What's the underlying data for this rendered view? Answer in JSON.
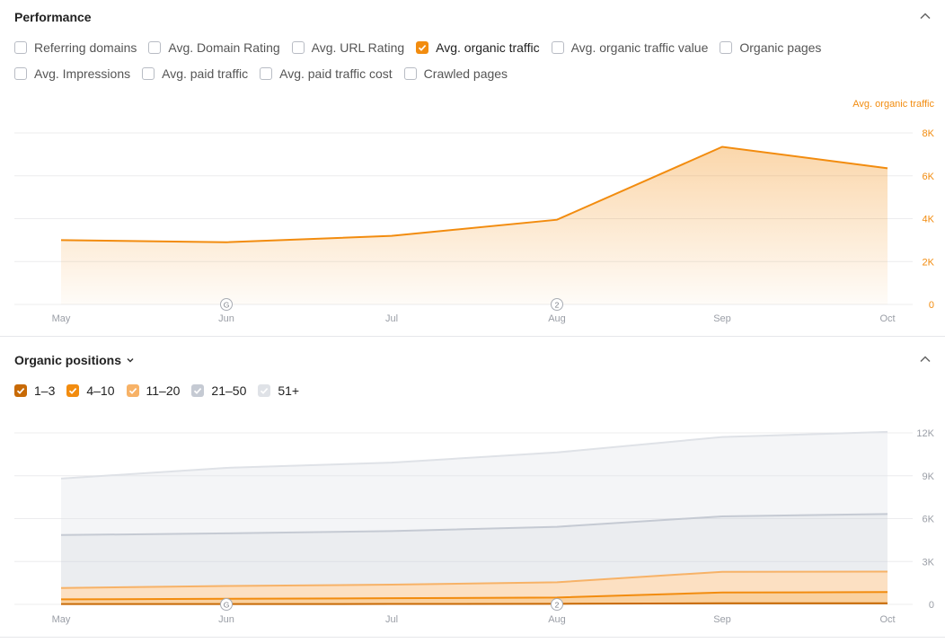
{
  "performance": {
    "title": "Performance",
    "checkboxes": [
      {
        "label": "Referring domains",
        "checked": false
      },
      {
        "label": "Avg. Domain Rating",
        "checked": false
      },
      {
        "label": "Avg. URL Rating",
        "checked": false
      },
      {
        "label": "Avg. organic traffic",
        "checked": true
      },
      {
        "label": "Avg. organic traffic value",
        "checked": false
      },
      {
        "label": "Organic pages",
        "checked": false
      },
      {
        "label": "Avg. Impressions",
        "checked": false
      },
      {
        "label": "Avg. paid traffic",
        "checked": false
      },
      {
        "label": "Avg. paid traffic cost",
        "checked": false
      },
      {
        "label": "Crawled pages",
        "checked": false
      }
    ],
    "accent_color": "#f28c0f"
  },
  "positions": {
    "title": "Organic positions",
    "legend": [
      {
        "label": "1–3",
        "color": "#c86a06"
      },
      {
        "label": "4–10",
        "color": "#f28c0f"
      },
      {
        "label": "11–20",
        "color": "#f7b267"
      },
      {
        "label": "21–50",
        "color": "#c5cad3"
      },
      {
        "label": "51+",
        "color": "#dfe2e7"
      }
    ]
  },
  "chart_data": [
    {
      "type": "area",
      "title": "",
      "x": [
        "May",
        "Jun",
        "Jul",
        "Aug",
        "Sep",
        "Oct"
      ],
      "ylabel": "Avg. organic traffic",
      "y_ticks": [
        "0",
        "2K",
        "4K",
        "6K",
        "8K"
      ],
      "ylim": [
        0,
        8000
      ],
      "grid": true,
      "series": [
        {
          "name": "Avg. organic traffic",
          "color": "#f28c0f",
          "values": [
            3000,
            2900,
            3200,
            3950,
            7350,
            6350
          ]
        }
      ],
      "annotations": [
        {
          "x": "Jun",
          "label": "G"
        },
        {
          "x": "Aug",
          "label": "2"
        }
      ]
    },
    {
      "type": "area",
      "title": "",
      "x": [
        "May",
        "Jun",
        "Jul",
        "Aug",
        "Sep",
        "Oct"
      ],
      "y_ticks": [
        "0",
        "3K",
        "6K",
        "9K",
        "12K"
      ],
      "ylim": [
        0,
        12000
      ],
      "grid": true,
      "stacked": true,
      "series": [
        {
          "name": "1–3",
          "color": "#c86a06",
          "values": [
            20,
            20,
            30,
            40,
            80,
            80
          ]
        },
        {
          "name": "4–10",
          "color": "#f28c0f",
          "values": [
            330,
            370,
            400,
            440,
            750,
            780
          ]
        },
        {
          "name": "11–20",
          "color": "#f7b267",
          "values": [
            800,
            900,
            950,
            1070,
            1450,
            1430
          ]
        },
        {
          "name": "21–50",
          "color": "#c5cad3",
          "values": [
            3700,
            3680,
            3750,
            3880,
            3880,
            4030
          ]
        },
        {
          "name": "51+",
          "color": "#dfe2e7",
          "values": [
            3950,
            4580,
            4790,
            5200,
            5550,
            5750
          ]
        }
      ],
      "annotations": [
        {
          "x": "Jun",
          "label": "G"
        },
        {
          "x": "Aug",
          "label": "2"
        }
      ]
    }
  ]
}
